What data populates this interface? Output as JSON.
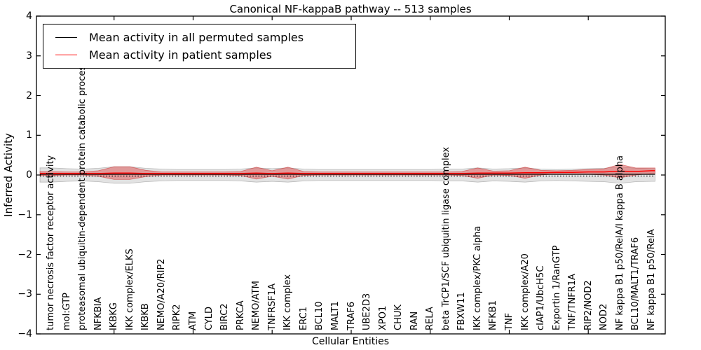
{
  "chart_data": {
    "type": "line",
    "subtype": "violin-with-mean-lines",
    "title": "Canonical NF-kappaB pathway -- 513 samples",
    "xlabel": "Cellular Entities",
    "ylabel": "Inferred Activity",
    "ylim": [
      -4,
      4
    ],
    "y_tick_labels": [
      "4",
      "3",
      "2",
      "1",
      "0",
      "−1",
      "−2",
      "−3",
      "−4"
    ],
    "y_tick_values": [
      4,
      3,
      2,
      1,
      0,
      -1,
      -2,
      -3,
      -4
    ],
    "grid": "off",
    "zero_reference_line": "black dotted at y=0",
    "legend_position": "upper left",
    "categories": [
      "tumor necrosis factor receptor activity",
      "mol:GTP",
      "proteasomal ubiquitin-dependent protein catabolic process",
      "NFKBIA",
      "IKBKG",
      "IKK complex/ELKS",
      "IKBKB",
      "NEMO/A20/RIP2",
      "RIPK2",
      "ATM",
      "CYLD",
      "BIRC2",
      "PRKCA",
      "NEMO/ATM",
      "TNFRSF1A",
      "IKK complex",
      "ERC1",
      "BCL10",
      "MALT1",
      "TRAF6",
      "UBE2D3",
      "XPO1",
      "CHUK",
      "RAN",
      "RELA",
      "beta TrCP1/SCF ubiquitin ligase complex",
      "FBXW11",
      "IKK complex/PKC alpha",
      "NFKB1",
      "TNF",
      "IKK complex/A20",
      "cIAP1/UbcH5C",
      "Exportin 1/RanGTP",
      "TNF/TNFR1A",
      "RIP2/NOD2",
      "NOD2",
      "NF kappa B1 p50/RelA/I kappa B alpha",
      "BCL10/MALT1/TRAF6",
      "NF kappa B1 p50/RelA"
    ],
    "series": [
      {
        "name": "Mean activity in all permuted samples",
        "color": "#000000",
        "values": [
          0,
          0,
          0,
          0,
          0,
          0,
          0,
          0,
          0,
          0,
          0,
          0,
          0,
          0,
          0,
          0,
          0,
          0,
          0,
          0,
          0,
          0,
          0,
          0,
          0,
          0,
          0,
          0,
          0,
          0,
          0,
          0,
          0,
          0,
          0,
          0,
          0,
          0,
          0
        ]
      },
      {
        "name": "Mean activity in patient samples",
        "color": "#ff0000",
        "values": [
          0.02,
          0.02,
          0.02,
          0.02,
          0.03,
          0.03,
          0.02,
          0.02,
          0.02,
          0.02,
          0.02,
          0.02,
          0.02,
          0.03,
          0.02,
          0.03,
          0.02,
          0.02,
          0.02,
          0.02,
          0.02,
          0.02,
          0.02,
          0.02,
          0.02,
          0.02,
          0.02,
          0.03,
          0.03,
          0.03,
          0.04,
          0.04,
          0.05,
          0.05,
          0.06,
          0.06,
          0.08,
          0.07,
          0.09
        ]
      }
    ],
    "violins": [
      {
        "name": "permuted samples activity spread",
        "fill": "rgba(125,125,125,0.22)",
        "edge": "rgba(90,90,90,0.35)",
        "half_widths": [
          0.18,
          0.16,
          0.15,
          0.17,
          0.21,
          0.21,
          0.17,
          0.15,
          0.14,
          0.14,
          0.14,
          0.14,
          0.15,
          0.18,
          0.16,
          0.18,
          0.15,
          0.14,
          0.14,
          0.14,
          0.14,
          0.14,
          0.14,
          0.14,
          0.14,
          0.15,
          0.15,
          0.18,
          0.15,
          0.16,
          0.18,
          0.15,
          0.14,
          0.15,
          0.16,
          0.17,
          0.21,
          0.17,
          0.16
        ]
      },
      {
        "name": "patient samples activity spread",
        "fill": "rgba(222,45,45,0.40)",
        "edge": "rgba(200,40,40,0.55)",
        "half_widths": [
          0.05,
          0.04,
          0.04,
          0.07,
          0.16,
          0.16,
          0.08,
          0.04,
          0.04,
          0.04,
          0.04,
          0.04,
          0.05,
          0.15,
          0.07,
          0.15,
          0.05,
          0.04,
          0.04,
          0.04,
          0.04,
          0.04,
          0.04,
          0.04,
          0.04,
          0.04,
          0.05,
          0.13,
          0.05,
          0.06,
          0.14,
          0.06,
          0.04,
          0.05,
          0.06,
          0.08,
          0.17,
          0.09,
          0.07
        ]
      }
    ]
  },
  "legend": {
    "items": [
      {
        "label": "Mean activity in all permuted samples",
        "color": "#000000"
      },
      {
        "label": "Mean activity in patient samples",
        "color": "#ff0000"
      }
    ]
  }
}
